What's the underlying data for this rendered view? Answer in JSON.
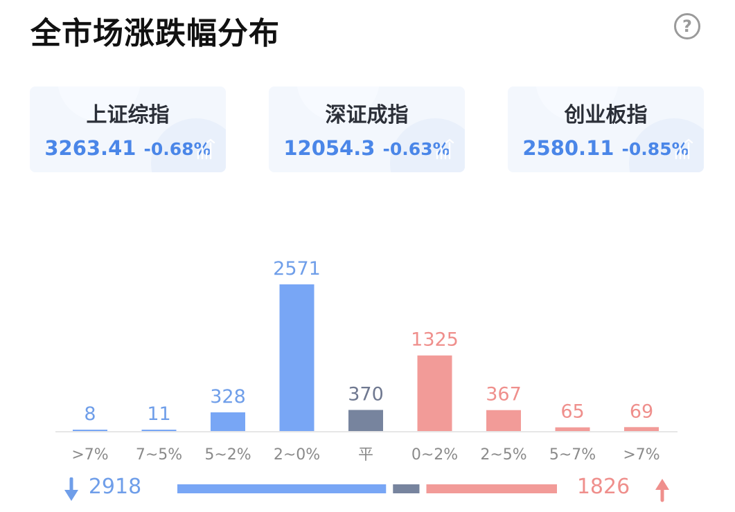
{
  "page": {
    "title": "全市场涨跌幅分布",
    "help": "?"
  },
  "indices": [
    {
      "name": "上证综指",
      "price": "3263.41",
      "change": "-0.68%"
    },
    {
      "name": "深证成指",
      "price": "12054.3",
      "change": "-0.63%"
    },
    {
      "name": "创业板指",
      "price": "2580.11",
      "change": "-0.85%"
    }
  ],
  "colors": {
    "down": "#78a6f5",
    "flat": "#77849e",
    "up": "#f29b98",
    "axis": "#e6e6e6",
    "tick": "#8a8a8a"
  },
  "chart_data": {
    "type": "bar",
    "categories": [
      ">7%",
      "7~5%",
      "5~2%",
      "2~0%",
      "平",
      "0~2%",
      "2~5%",
      "5~7%",
      ">7%"
    ],
    "values": [
      8,
      11,
      328,
      2571,
      370,
      1325,
      367,
      65,
      69
    ],
    "groups": [
      "down",
      "down",
      "down",
      "down",
      "flat",
      "up",
      "up",
      "up",
      "up"
    ],
    "ylim": [
      0,
      2571
    ]
  },
  "totals": {
    "down": "2918",
    "flat": "370",
    "up": "1826"
  }
}
